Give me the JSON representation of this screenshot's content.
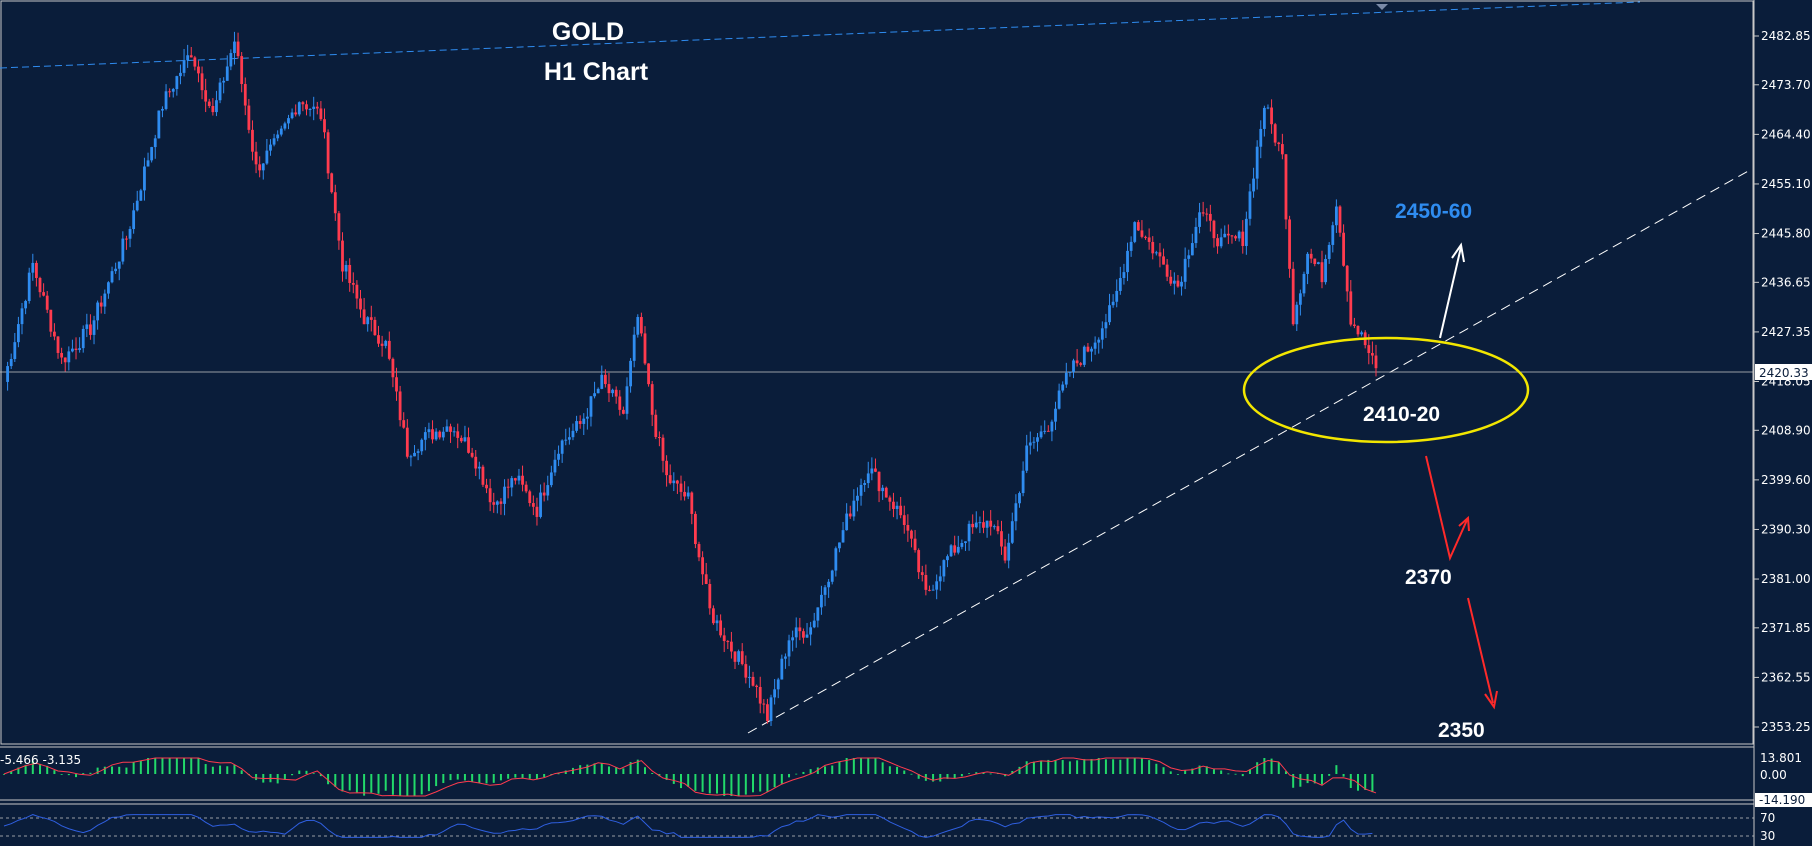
{
  "title": "GOLD",
  "subtitle": "H1 Chart",
  "colors": {
    "background": "#0a1d3a",
    "bull": "#2f8cf0",
    "bear": "#ff3b4e",
    "histogram": "#22d96a",
    "ellipse": "#f2e600",
    "trendline": "#ffffff",
    "channel": "#2f8cf0",
    "resistance_label": "#2f8cf0",
    "rsi_line": "#2f5fe0"
  },
  "annotations": {
    "resistance": "2450-60",
    "zone": "2410-20",
    "target1": "2370",
    "target2": "2350"
  },
  "chart_data": {
    "type": "candlestick",
    "title": "GOLD",
    "subtitle": "H1 Chart",
    "ylim": [
      2349,
      2489
    ],
    "y_ticks": [
      "2482.85",
      "2473.70",
      "2464.40",
      "2455.10",
      "2445.80",
      "2436.65",
      "2427.35",
      "2418.05",
      "2408.90",
      "2399.60",
      "2390.30",
      "2381.00",
      "2371.85",
      "2362.55",
      "2353.25"
    ],
    "current_price": "2420.33",
    "path_points": [
      [
        0,
        2418
      ],
      [
        8,
        2440
      ],
      [
        16,
        2422
      ],
      [
        24,
        2428
      ],
      [
        34,
        2445
      ],
      [
        44,
        2470
      ],
      [
        52,
        2480
      ],
      [
        58,
        2468
      ],
      [
        64,
        2482
      ],
      [
        70,
        2458
      ],
      [
        76,
        2463
      ],
      [
        82,
        2471
      ],
      [
        88,
        2468
      ],
      [
        94,
        2440
      ],
      [
        100,
        2430
      ],
      [
        106,
        2425
      ],
      [
        112,
        2405
      ],
      [
        118,
        2408
      ],
      [
        124,
        2410
      ],
      [
        130,
        2405
      ],
      [
        136,
        2395
      ],
      [
        142,
        2400
      ],
      [
        148,
        2394
      ],
      [
        154,
        2406
      ],
      [
        160,
        2410
      ],
      [
        166,
        2418
      ],
      [
        172,
        2412
      ],
      [
        176,
        2430
      ],
      [
        180,
        2412
      ],
      [
        184,
        2400
      ],
      [
        190,
        2396
      ],
      [
        196,
        2375
      ],
      [
        202,
        2368
      ],
      [
        208,
        2362
      ],
      [
        212,
        2355
      ],
      [
        218,
        2370
      ],
      [
        224,
        2372
      ],
      [
        230,
        2384
      ],
      [
        236,
        2396
      ],
      [
        240,
        2402
      ],
      [
        246,
        2396
      ],
      [
        250,
        2392
      ],
      [
        256,
        2378
      ],
      [
        262,
        2385
      ],
      [
        268,
        2390
      ],
      [
        274,
        2392
      ],
      [
        278,
        2385
      ],
      [
        284,
        2405
      ],
      [
        290,
        2410
      ],
      [
        296,
        2420
      ],
      [
        302,
        2425
      ],
      [
        308,
        2432
      ],
      [
        314,
        2448
      ],
      [
        320,
        2442
      ],
      [
        326,
        2436
      ],
      [
        332,
        2450
      ],
      [
        338,
        2444
      ],
      [
        344,
        2445
      ],
      [
        350,
        2470
      ],
      [
        355,
        2460
      ],
      [
        358,
        2430
      ],
      [
        362,
        2442
      ],
      [
        366,
        2438
      ],
      [
        370,
        2452
      ],
      [
        374,
        2430
      ],
      [
        378,
        2425
      ],
      [
        381,
        2420
      ]
    ],
    "macd_histogram": {
      "label": "-5.466 -3.135",
      "ticks": [
        "13.801",
        "0.00",
        "-14.190"
      ]
    },
    "rsi": {
      "ticks": [
        "70",
        "30"
      ]
    }
  }
}
